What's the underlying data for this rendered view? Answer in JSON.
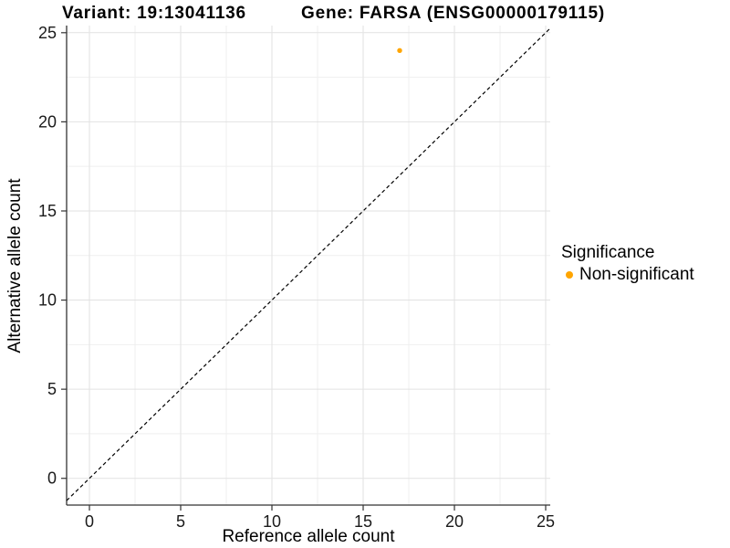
{
  "chart_data": {
    "type": "scatter",
    "titles": {
      "left": "Variant: 19:13041136",
      "right": "Gene: FARSA (ENSG00000179115)"
    },
    "xlabel": "Reference allele count",
    "ylabel": "Alternative allele count",
    "x_ticks": [
      0,
      5,
      10,
      15,
      20,
      25
    ],
    "y_ticks": [
      0,
      5,
      10,
      15,
      20,
      25
    ],
    "xlim": [
      -1.25,
      25.25
    ],
    "ylim": [
      -1.5,
      25.4
    ],
    "grid": {
      "show": true,
      "show_minor": true,
      "major_color": "#E2E2E2",
      "minor_color": "#EFEFEF"
    },
    "axis_color": "#333333",
    "tick_label_color": "#1A1A1A",
    "identity_line": {
      "equation": "y = x",
      "style": "dashed",
      "color": "#000000"
    },
    "series": [
      {
        "name": "Non-significant",
        "color": "#FFA500",
        "points": [
          {
            "x": 17,
            "y": 24
          }
        ]
      }
    ],
    "legend": {
      "title": "Significance",
      "position": "right",
      "items": [
        {
          "label": "Non-significant",
          "color": "#FFA500"
        }
      ]
    }
  }
}
